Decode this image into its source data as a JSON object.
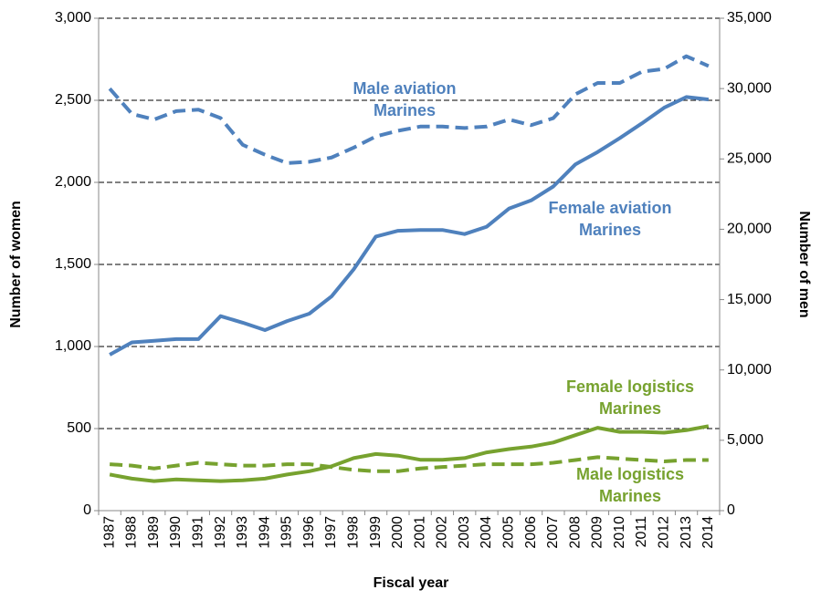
{
  "chart_data": {
    "type": "line",
    "x_label": "Fiscal year",
    "y_label": "Number of women",
    "y2_label": "Number of men",
    "categories": [
      "1987",
      "1988",
      "1989",
      "1990",
      "1991",
      "1992",
      "1993",
      "1994",
      "1995",
      "1996",
      "1997",
      "1998",
      "1999",
      "2000",
      "2001",
      "2002",
      "2003",
      "2004",
      "2005",
      "2006",
      "2007",
      "2008",
      "2009",
      "2010",
      "2011",
      "2012",
      "2013",
      "2014"
    ],
    "ylim": [
      0,
      3000
    ],
    "yticks": [
      0,
      500,
      {
        "value": 1000,
        "label": "1,000"
      },
      {
        "value": 1500,
        "label": "1,500"
      },
      {
        "value": 2000,
        "label": "2,000"
      },
      {
        "value": 2500,
        "label": "2,500"
      },
      {
        "value": 3000,
        "label": "3,000"
      }
    ],
    "y2lim": [
      0,
      35000
    ],
    "y2ticks": [
      0,
      {
        "value": 5000,
        "label": "5,000"
      },
      {
        "value": 10000,
        "label": "10,000"
      },
      {
        "value": 15000,
        "label": "15,000"
      },
      {
        "value": 20000,
        "label": "20,000"
      },
      {
        "value": 25000,
        "label": "25,000"
      },
      {
        "value": 30000,
        "label": "30,000"
      },
      {
        "value": 35000,
        "label": "35,000"
      }
    ],
    "grid": true,
    "series": [
      {
        "name": "Male aviation Marines",
        "color": "#4f81bd",
        "style": "dashed",
        "axis": "y2",
        "values": [
          30000,
          28200,
          27800,
          28400,
          28500,
          27900,
          26000,
          25300,
          24700,
          24800,
          25100,
          25800,
          26600,
          27000,
          27300,
          27300,
          27200,
          27300,
          27800,
          27400,
          27900,
          29600,
          30400,
          30400,
          31200,
          31400,
          32300,
          31600
        ]
      },
      {
        "name": "Female aviation Marines",
        "color": "#4f81bd",
        "style": "solid",
        "values": [
          950,
          1025,
          1035,
          1045,
          1045,
          1185,
          1145,
          1100,
          1155,
          1200,
          1305,
          1470,
          1670,
          1705,
          1710,
          1710,
          1685,
          1730,
          1840,
          1890,
          1975,
          2110,
          2185,
          2270,
          2360,
          2455,
          2520,
          2505
        ]
      },
      {
        "name": "Female logistics Marines",
        "color": "#77a22f",
        "style": "solid",
        "values": [
          220,
          195,
          180,
          190,
          185,
          180,
          185,
          195,
          220,
          240,
          270,
          320,
          345,
          335,
          310,
          310,
          320,
          355,
          375,
          390,
          415,
          460,
          505,
          480,
          480,
          475,
          490,
          515
        ]
      },
      {
        "name": "Male logistics Marines",
        "color": "#77a22f",
        "style": "dashed",
        "axis": "y2",
        "values": [
          3300,
          3200,
          3000,
          3200,
          3400,
          3300,
          3200,
          3200,
          3300,
          3300,
          3100,
          2900,
          2800,
          2800,
          3000,
          3100,
          3200,
          3300,
          3300,
          3300,
          3400,
          3600,
          3800,
          3700,
          3600,
          3500,
          3600,
          3600
        ]
      }
    ]
  }
}
